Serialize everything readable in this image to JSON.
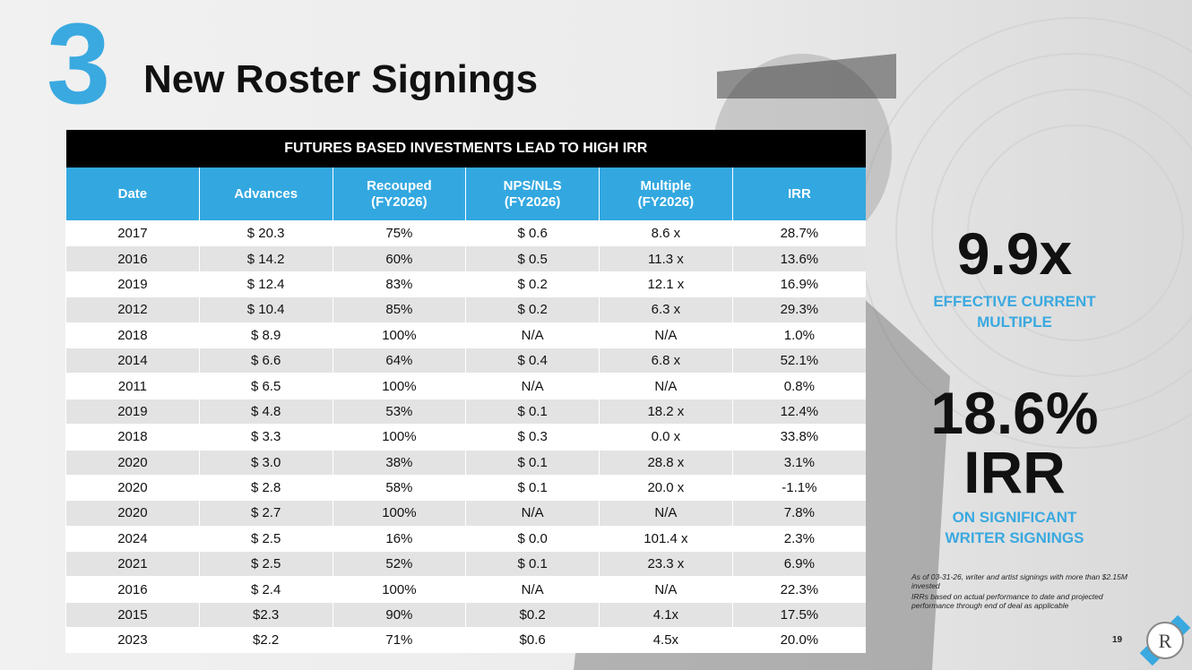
{
  "header": {
    "number": "3",
    "title": "New Roster Signings"
  },
  "table": {
    "caption": "FUTURES BASED INVESTMENTS LEAD TO HIGH IRR",
    "header": [
      "Date",
      "Advances",
      "Recouped\n(FY2026)",
      "NPS/NLS\n(FY2026)",
      "Multiple\n(FY2026)",
      "IRR"
    ],
    "rows": [
      [
        "2017",
        "$ 20.3",
        "75%",
        "$ 0.6",
        "8.6 x",
        "28.7%"
      ],
      [
        "2016",
        "$ 14.2",
        "60%",
        "$ 0.5",
        "11.3 x",
        "13.6%"
      ],
      [
        "2019",
        "$ 12.4",
        "83%",
        "$ 0.2",
        "12.1 x",
        "16.9%"
      ],
      [
        "2012",
        "$ 10.4",
        "85%",
        "$ 0.2",
        "6.3 x",
        "29.3%"
      ],
      [
        "2018",
        "$ 8.9",
        "100%",
        "N/A",
        "N/A",
        "1.0%"
      ],
      [
        "2014",
        "$ 6.6",
        "64%",
        "$ 0.4",
        "6.8 x",
        "52.1%"
      ],
      [
        "2011",
        "$ 6.5",
        "100%",
        "N/A",
        "N/A",
        "0.8%"
      ],
      [
        "2019",
        "$ 4.8",
        "53%",
        "$ 0.1",
        "18.2 x",
        "12.4%"
      ],
      [
        "2018",
        "$ 3.3",
        "100%",
        "$ 0.3",
        "0.0 x",
        "33.8%"
      ],
      [
        "2020",
        "$ 3.0",
        "38%",
        "$ 0.1",
        "28.8 x",
        "3.1%"
      ],
      [
        "2020",
        "$ 2.8",
        "58%",
        "$ 0.1",
        "20.0 x",
        "-1.1%"
      ],
      [
        "2020",
        "$ 2.7",
        "100%",
        "N/A",
        "N/A",
        "7.8%"
      ],
      [
        "2024",
        "$ 2.5",
        "16%",
        "$ 0.0",
        "101.4 x",
        "2.3%"
      ],
      [
        "2021",
        "$ 2.5",
        "52%",
        "$ 0.1",
        "23.3 x",
        "6.9%"
      ],
      [
        "2016",
        "$ 2.4",
        "100%",
        "N/A",
        "N/A",
        "22.3%"
      ],
      [
        "2015",
        "$2.3",
        "90%",
        "$0.2",
        "4.1x",
        "17.5%"
      ],
      [
        "2023",
        "$2.2",
        "71%",
        "$0.6",
        "4.5x",
        "20.0%"
      ]
    ]
  },
  "highlights": {
    "multiple": "9.9x",
    "multiple_label": "EFFECTIVE CURRENT\nMULTIPLE",
    "irr": "18.6%\nIRR",
    "irr_label": "ON SIGNIFICANT\nWRITER SIGNINGS"
  },
  "footnotes": [
    "As of 03-31-26, writer and artist signings with more than $2.15M invested",
    "IRRs based on actual performance to date and projected performance through end of deal as applicable"
  ],
  "page_number": "19"
}
